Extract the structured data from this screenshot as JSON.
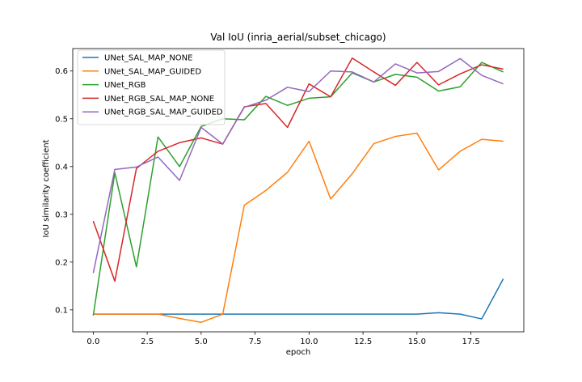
{
  "chart_data": {
    "type": "line",
    "title": "Val IoU (inria_aerial/subset_chicago)",
    "xlabel": "epoch",
    "ylabel": "IoU similarity coefficient",
    "xlim": [
      -0.95,
      19.95
    ],
    "ylim": [
      0.054,
      0.647
    ],
    "xticks": [
      0.0,
      2.5,
      5.0,
      7.5,
      10.0,
      12.5,
      15.0,
      17.5
    ],
    "xtick_labels": [
      "0.0",
      "2.5",
      "5.0",
      "7.5",
      "10.0",
      "12.5",
      "15.0",
      "17.5"
    ],
    "yticks": [
      0.1,
      0.2,
      0.3,
      0.4,
      0.5,
      0.6
    ],
    "ytick_labels": [
      "0.1",
      "0.2",
      "0.3",
      "0.4",
      "0.5",
      "0.6"
    ],
    "grid": false,
    "legend_position": "top-left",
    "x": [
      0,
      1,
      2,
      3,
      4,
      5,
      6,
      7,
      8,
      9,
      10,
      11,
      12,
      13,
      14,
      15,
      16,
      17,
      18,
      19
    ],
    "series": [
      {
        "name": "UNet_SAL_MAP_NONE",
        "color": "#1f77b4",
        "values": [
          0.091,
          0.091,
          0.091,
          0.091,
          0.091,
          0.091,
          0.091,
          0.091,
          0.091,
          0.091,
          0.091,
          0.091,
          0.091,
          0.091,
          0.091,
          0.091,
          0.094,
          0.091,
          0.081,
          0.165
        ]
      },
      {
        "name": "UNet_SAL_MAP_GUIDED",
        "color": "#ff7f0e",
        "values": [
          0.091,
          0.091,
          0.091,
          0.091,
          0.082,
          0.074,
          0.091,
          0.319,
          0.35,
          0.388,
          0.453,
          0.332,
          0.385,
          0.448,
          0.463,
          0.47,
          0.393,
          0.432,
          0.457,
          0.453
        ]
      },
      {
        "name": "UNet_RGB",
        "color": "#2ca02c",
        "values": [
          0.088,
          0.387,
          0.19,
          0.462,
          0.4,
          0.484,
          0.5,
          0.498,
          0.547,
          0.528,
          0.543,
          0.546,
          0.596,
          0.577,
          0.593,
          0.587,
          0.558,
          0.567,
          0.618,
          0.598
        ]
      },
      {
        "name": "UNet_RGB_SAL_MAP_NONE",
        "color": "#d62728",
        "values": [
          0.286,
          0.16,
          0.396,
          0.432,
          0.45,
          0.46,
          0.447,
          0.525,
          0.532,
          0.482,
          0.573,
          0.546,
          0.627,
          0.598,
          0.57,
          0.618,
          0.571,
          0.594,
          0.613,
          0.604
        ]
      },
      {
        "name": "UNet_RGB_SAL_MAP_GUIDED",
        "color": "#9467bd",
        "values": [
          0.177,
          0.394,
          0.399,
          0.42,
          0.371,
          0.482,
          0.447,
          0.524,
          0.539,
          0.566,
          0.557,
          0.6,
          0.598,
          0.577,
          0.615,
          0.596,
          0.599,
          0.626,
          0.591,
          0.573
        ]
      }
    ]
  }
}
